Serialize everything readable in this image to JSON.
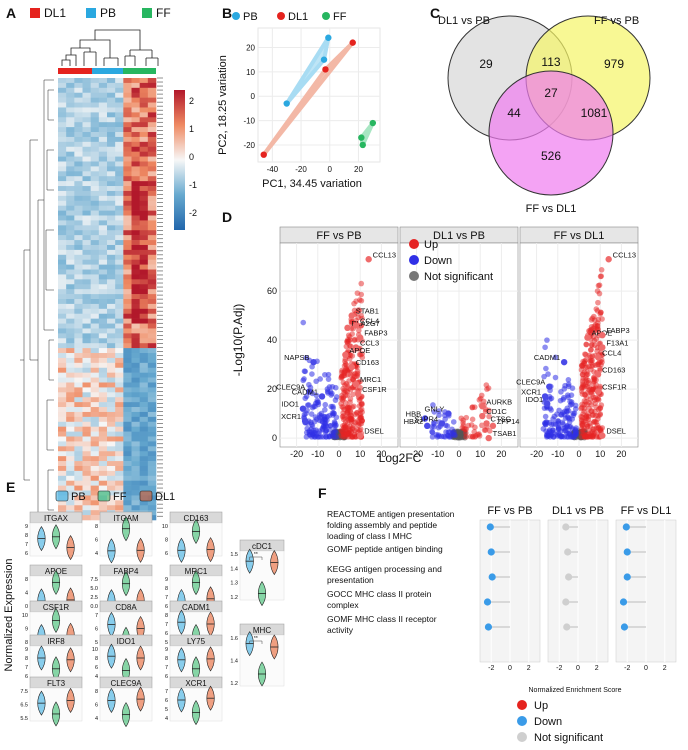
{
  "panels": {
    "A": "A",
    "B": "B",
    "C": "C",
    "D": "D",
    "E": "E",
    "F": "F"
  },
  "legend_groups": [
    {
      "label": "DL1",
      "color": "#e5231e"
    },
    {
      "label": "PB",
      "color": "#2aa8e0"
    },
    {
      "label": "FF",
      "color": "#27b660"
    }
  ],
  "heatmap_scale": {
    "ticks": [
      "2",
      "1",
      "0",
      "-1",
      "-2"
    ]
  },
  "chart_data": [
    {
      "type": "scatter",
      "panel": "B",
      "xlabel": "PC1, 34.45 variation",
      "ylabel": "PC2, 18.25 variation",
      "xlim": [
        -50,
        35
      ],
      "ylim": [
        -27,
        28
      ],
      "xticks": [
        "-40",
        "-20",
        "0",
        "20"
      ],
      "yticks": [
        "20",
        "10",
        "0",
        "-10",
        "-20"
      ],
      "legend": [
        "PB",
        "DL1",
        "FF"
      ],
      "series": [
        {
          "name": "PB",
          "color": "#2aa8e0",
          "points": [
            [
              -30,
              -3
            ],
            [
              -4,
              15
            ],
            [
              -1,
              24
            ]
          ]
        },
        {
          "name": "DL1",
          "color": "#e5231e",
          "points": [
            [
              -46,
              -24
            ],
            [
              -3,
              11
            ],
            [
              16,
              22
            ]
          ]
        },
        {
          "name": "FF",
          "color": "#27b660",
          "points": [
            [
              22,
              -17
            ],
            [
              23,
              -20
            ],
            [
              30,
              -11
            ]
          ]
        }
      ]
    },
    {
      "type": "venn",
      "panel": "C",
      "sets": [
        "DL1 vs PB",
        "FF vs PB",
        "FF vs DL1"
      ],
      "regions": {
        "dl1_only": "29",
        "ffpb_only": "979",
        "ffdl1_only": "526",
        "dl1_ffpb": "113",
        "dl1_ffdl1": "44",
        "ffpb_ffdl1": "1081",
        "all": "27"
      }
    },
    {
      "type": "volcano",
      "panel": "D",
      "xlabel": "Log2FC",
      "ylabel": "-Log10(P.Adj)",
      "xticks": [
        "-20",
        "-10",
        "0",
        "10",
        "20"
      ],
      "yticks": [
        "60",
        "40",
        "20",
        "0"
      ],
      "legend": [
        "Up",
        "Down",
        "Not significant"
      ],
      "facets": [
        {
          "title": "FF vs PB",
          "genes": [
            {
              "label": "CCL13",
              "x": 14,
              "y": 73
            },
            {
              "label": "STAB1",
              "x": 6,
              "y": 50
            },
            {
              "label": "PLA2G7",
              "x": 4,
              "y": 45
            },
            {
              "label": "CCL4",
              "x": 8,
              "y": 46
            },
            {
              "label": "FABP3",
              "x": 10,
              "y": 41
            },
            {
              "label": "CCL3",
              "x": 8,
              "y": 37
            },
            {
              "label": "APOE",
              "x": 3,
              "y": 34
            },
            {
              "label": "CD163",
              "x": 6,
              "y": 29
            },
            {
              "label": "NAPSB",
              "x": -12,
              "y": 31
            },
            {
              "label": "MRC1",
              "x": 8,
              "y": 22
            },
            {
              "label": "CSF1R",
              "x": 9,
              "y": 18
            },
            {
              "label": "CLEC9A",
              "x": -14,
              "y": 19
            },
            {
              "label": "CADM1",
              "x": -8,
              "y": 17
            },
            {
              "label": "IDO1",
              "x": -17,
              "y": 12
            },
            {
              "label": "XCR1",
              "x": -16,
              "y": 7
            },
            {
              "label": "DSEL",
              "x": 10,
              "y": 1
            }
          ]
        },
        {
          "title": "DL1 vs PB",
          "genes": [
            {
              "label": "AURKB",
              "x": 11,
              "y": 13
            },
            {
              "label": "GNLY",
              "x": -5,
              "y": 10
            },
            {
              "label": "CD1C",
              "x": 11,
              "y": 9
            },
            {
              "label": "HBB",
              "x": -16,
              "y": 8
            },
            {
              "label": "CTSG",
              "x": 13,
              "y": 6
            },
            {
              "label": "S1PR4",
              "x": -8,
              "y": 6
            },
            {
              "label": "ZFP14",
              "x": 16,
              "y": 5
            },
            {
              "label": "HBA2",
              "x": -15,
              "y": 5
            },
            {
              "label": "TSAB1",
              "x": 14,
              "y": 0
            }
          ]
        },
        {
          "title": "FF vs DL1",
          "genes": [
            {
              "label": "CCL13",
              "x": 14,
              "y": 73
            },
            {
              "label": "APOE",
              "x": 4,
              "y": 41
            },
            {
              "label": "FABP3",
              "x": 11,
              "y": 42
            },
            {
              "label": "F13A1",
              "x": 11,
              "y": 37
            },
            {
              "label": "CCL4",
              "x": 9,
              "y": 33
            },
            {
              "label": "CADM1",
              "x": -7,
              "y": 31
            },
            {
              "label": "CD163",
              "x": 9,
              "y": 26
            },
            {
              "label": "CLEC9A",
              "x": -14,
              "y": 21
            },
            {
              "label": "CSF1R",
              "x": 9,
              "y": 19
            },
            {
              "label": "XCR1",
              "x": -16,
              "y": 17
            },
            {
              "label": "IDO1",
              "x": -15,
              "y": 14
            },
            {
              "label": "DSEL",
              "x": 11,
              "y": 1
            }
          ]
        }
      ]
    },
    {
      "type": "violin",
      "panel": "E",
      "ylabel": "Normalized Expression",
      "legend": [
        {
          "label": "PB",
          "color": "#2aa8e0"
        },
        {
          "label": "FF",
          "color": "#27b660"
        },
        {
          "label": "DL1",
          "color": "#e5531e"
        }
      ],
      "genes": [
        {
          "name": "ITGAX",
          "ticks": [
            "9",
            "8",
            "7",
            "6"
          ],
          "medians": [
            7.6,
            7.8,
            6.6
          ]
        },
        {
          "name": "ITGAM",
          "ticks": [
            "8",
            "6",
            "4"
          ],
          "medians": [
            4.2,
            7.6,
            4.4
          ]
        },
        {
          "name": "CD163",
          "ticks": [
            "10",
            "8",
            "6"
          ],
          "medians": [
            6.4,
            9.2,
            6.5
          ]
        },
        {
          "name": "APOE",
          "ticks": [
            "8",
            "4",
            "0"
          ],
          "medians": [
            1.5,
            7.0,
            1.8
          ]
        },
        {
          "name": "FABP4",
          "ticks": [
            "7.5",
            "5.0",
            "2.5",
            "0.0"
          ],
          "medians": [
            1.2,
            6.2,
            1.4
          ]
        },
        {
          "name": "MRC1",
          "ticks": [
            "9",
            "8",
            "7",
            "6"
          ],
          "medians": [
            6.5,
            8.6,
            6.8
          ]
        },
        {
          "name": "CSF1R",
          "ticks": [
            "10",
            "9",
            "8"
          ],
          "medians": [
            8.4,
            9.6,
            8.5
          ]
        },
        {
          "name": "CD8A",
          "ticks": [
            "7",
            "6",
            "5"
          ],
          "medians": [
            6.3,
            5.2,
            6.0
          ]
        },
        {
          "name": "CADM1",
          "ticks": [
            "8",
            "7",
            "6",
            "5"
          ],
          "medians": [
            7.2,
            5.6,
            7.0
          ]
        },
        {
          "name": "IRF8",
          "ticks": [
            "9",
            "8",
            "7",
            "6"
          ],
          "medians": [
            8.0,
            6.8,
            7.8
          ]
        },
        {
          "name": "IDO1",
          "ticks": [
            "10",
            "8",
            "6",
            "4"
          ],
          "medians": [
            8.4,
            5.2,
            8.0
          ]
        },
        {
          "name": "LY75",
          "ticks": [
            "9",
            "8",
            "7",
            "6"
          ],
          "medians": [
            7.8,
            6.8,
            7.9
          ]
        },
        {
          "name": "FLT3",
          "ticks": [
            "7.5",
            "6.5",
            "5.5"
          ],
          "medians": [
            6.6,
            5.8,
            6.8
          ]
        },
        {
          "name": "CLEC9A",
          "ticks": [
            "8",
            "6",
            "4"
          ],
          "medians": [
            6.6,
            4.5,
            6.8
          ]
        },
        {
          "name": "XCR1",
          "ticks": [
            "7",
            "6",
            "5",
            "4"
          ],
          "medians": [
            6.0,
            4.6,
            6.2
          ]
        },
        {
          "name": "cDC1",
          "ticks": [
            "1.5",
            "1.4",
            "1.3",
            "1.2"
          ],
          "medians": [
            1.45,
            1.22,
            1.44
          ],
          "sig": "**"
        },
        {
          "name": "MHC",
          "ticks": [
            "1.6",
            "1.4",
            "1.2"
          ],
          "medians": [
            1.55,
            1.28,
            1.52
          ],
          "sig": "**"
        }
      ]
    },
    {
      "type": "lollipop",
      "panel": "F",
      "xlabel": "Normalized Enrichment Score",
      "xticks": [
        "-2",
        "0",
        "2"
      ],
      "facets": [
        "FF vs PB",
        "DL1 vs PB",
        "FF vs DL1"
      ],
      "pathways": [
        "REACTOME antigen presentation folding assembly and peptide loading of class I MHC",
        "GOMF peptide antigen binding",
        "KEGG antigen processing and presentation",
        "GOCC MHC class II protein complex",
        "GOMF MHC class II receptor activity"
      ],
      "nes": [
        [
          -2.1,
          -2.0,
          -1.9,
          -2.4,
          -2.3
        ],
        [
          -1.3,
          -1.1,
          -1.0,
          -1.3,
          -1.2
        ],
        [
          -2.1,
          -2.0,
          -2.0,
          -2.4,
          -2.3
        ]
      ],
      "status": [
        [
          "Down",
          "Down",
          "Down",
          "Down",
          "Down"
        ],
        [
          "Not significant",
          "Not significant",
          "Not significant",
          "Not significant",
          "Not significant"
        ],
        [
          "Down",
          "Down",
          "Down",
          "Down",
          "Down"
        ]
      ],
      "legend": [
        {
          "label": "Up",
          "color": "#e5231e"
        },
        {
          "label": "Down",
          "color": "#3a9be8"
        },
        {
          "label": "Not significant",
          "color": "#cfcfcf"
        }
      ]
    }
  ]
}
